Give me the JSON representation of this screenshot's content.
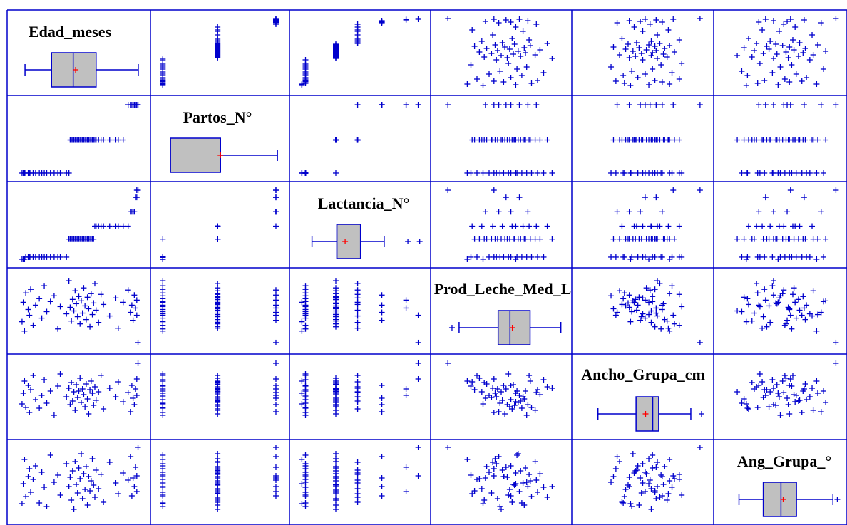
{
  "chart_data": {
    "type": "scatter-matrix",
    "variables": [
      "Edad_meses",
      "Partos_N°",
      "Lactancia_N°",
      "Prod_Leche_Med_L",
      "Ancho_Grupa_cm",
      "Ang_Grupa_°"
    ],
    "diagonal": [
      {
        "name": "Edad_meses",
        "range": [
          0,
          1
        ],
        "min": 0.03,
        "q1": 0.25,
        "median": 0.43,
        "mean": 0.45,
        "q3": 0.62,
        "max": 0.97,
        "outliers": []
      },
      {
        "name": "Partos_N°",
        "range": [
          0,
          1
        ],
        "min": 0.05,
        "q1": 0.05,
        "median": 0.48,
        "mean": 0.48,
        "q3": 0.48,
        "max": 0.97,
        "outliers": []
      },
      {
        "name": "Lactancia_N°",
        "range": [
          0,
          1
        ],
        "min": 0.07,
        "q1": 0.28,
        "median": 0.28,
        "mean": 0.35,
        "q3": 0.48,
        "max": 0.68,
        "outliers": [
          0.88,
          0.98
        ]
      },
      {
        "name": "Prod_Leche_Med_L",
        "range": [
          0,
          1
        ],
        "min": 0.12,
        "q1": 0.45,
        "median": 0.55,
        "mean": 0.57,
        "q3": 0.72,
        "max": 0.98,
        "outliers": [
          0.06
        ]
      },
      {
        "name": "Ancho_Grupa_cm",
        "range": [
          0,
          1
        ],
        "min": 0.1,
        "q1": 0.42,
        "median": 0.56,
        "mean": 0.5,
        "q3": 0.61,
        "max": 0.88,
        "outliers": [
          0.97
        ]
      },
      {
        "name": "Ang_Grupa_°",
        "range": [
          0,
          1
        ],
        "min": 0.1,
        "q1": 0.32,
        "median": 0.48,
        "mean": 0.5,
        "q3": 0.62,
        "max": 0.95,
        "outliers": [
          0.99
        ]
      }
    ],
    "scatter_points": [
      [
        0.04,
        0.02,
        0.02,
        0.35,
        0.4,
        0.2
      ],
      [
        0.05,
        0.02,
        0.02,
        0.62,
        0.55,
        0.48
      ],
      [
        0.06,
        0.02,
        0.02,
        0.22,
        0.72,
        0.82
      ],
      [
        0.07,
        0.02,
        0.05,
        0.75,
        0.35,
        0.3
      ],
      [
        0.09,
        0.02,
        0.05,
        0.52,
        0.66,
        0.58
      ],
      [
        0.1,
        0.02,
        0.05,
        0.44,
        0.28,
        0.69
      ],
      [
        0.11,
        0.02,
        0.05,
        0.8,
        0.6,
        0.36
      ],
      [
        0.13,
        0.02,
        0.05,
        0.3,
        0.8,
        0.54
      ],
      [
        0.15,
        0.02,
        0.05,
        0.58,
        0.46,
        0.73
      ],
      [
        0.18,
        0.02,
        0.05,
        0.67,
        0.34,
        0.21
      ],
      [
        0.2,
        0.02,
        0.05,
        0.4,
        0.52,
        0.64
      ],
      [
        0.22,
        0.02,
        0.05,
        0.85,
        0.74,
        0.43
      ],
      [
        0.24,
        0.02,
        0.05,
        0.49,
        0.41,
        0.16
      ],
      [
        0.27,
        0.02,
        0.05,
        0.63,
        0.58,
        0.88
      ],
      [
        0.3,
        0.02,
        0.05,
        0.71,
        0.24,
        0.5
      ],
      [
        0.33,
        0.02,
        0.05,
        0.25,
        0.65,
        0.6
      ],
      [
        0.35,
        0.02,
        0.05,
        0.56,
        0.82,
        0.32
      ],
      [
        0.4,
        0.02,
        0.05,
        0.46,
        0.5,
        0.76
      ],
      [
        0.42,
        0.02,
        0.3,
        0.92,
        0.62,
        0.44
      ],
      [
        0.43,
        0.48,
        0.3,
        0.55,
        0.39,
        0.57
      ],
      [
        0.44,
        0.48,
        0.3,
        0.36,
        0.7,
        0.25
      ],
      [
        0.45,
        0.48,
        0.3,
        0.66,
        0.44,
        0.66
      ],
      [
        0.46,
        0.48,
        0.3,
        0.5,
        0.57,
        0.12
      ],
      [
        0.47,
        0.48,
        0.3,
        0.78,
        0.31,
        0.79
      ],
      [
        0.48,
        0.48,
        0.3,
        0.6,
        0.67,
        0.47
      ],
      [
        0.49,
        0.48,
        0.3,
        0.42,
        0.49,
        0.35
      ],
      [
        0.5,
        0.48,
        0.3,
        0.7,
        0.58,
        0.7
      ],
      [
        0.51,
        0.48,
        0.3,
        0.32,
        0.76,
        0.55
      ],
      [
        0.52,
        0.48,
        0.3,
        0.64,
        0.42,
        0.9
      ],
      [
        0.53,
        0.48,
        0.3,
        0.47,
        0.61,
        0.27
      ],
      [
        0.54,
        0.48,
        0.3,
        0.82,
        0.53,
        0.62
      ],
      [
        0.55,
        0.48,
        0.3,
        0.57,
        0.36,
        0.4
      ],
      [
        0.56,
        0.48,
        0.3,
        0.38,
        0.68,
        0.72
      ],
      [
        0.57,
        0.48,
        0.3,
        0.69,
        0.47,
        0.18
      ],
      [
        0.58,
        0.48,
        0.3,
        0.53,
        0.26,
        0.58
      ],
      [
        0.59,
        0.48,
        0.3,
        0.28,
        0.6,
        0.38
      ],
      [
        0.6,
        0.48,
        0.3,
        0.74,
        0.72,
        0.52
      ],
      [
        0.61,
        0.48,
        0.3,
        0.45,
        0.55,
        0.83
      ],
      [
        0.62,
        0.48,
        0.3,
        0.61,
        0.38,
        0.46
      ],
      [
        0.63,
        0.48,
        0.48,
        0.88,
        0.64,
        0.29
      ],
      [
        0.64,
        0.48,
        0.48,
        0.51,
        0.45,
        0.67
      ],
      [
        0.66,
        0.48,
        0.48,
        0.34,
        0.57,
        0.41
      ],
      [
        0.68,
        0.48,
        0.48,
        0.73,
        0.8,
        0.61
      ],
      [
        0.7,
        0.48,
        0.48,
        0.59,
        0.33,
        0.22
      ],
      [
        0.75,
        0.48,
        0.48,
        0.43,
        0.62,
        0.78
      ],
      [
        0.8,
        0.48,
        0.48,
        0.68,
        0.5,
        0.49
      ],
      [
        0.82,
        0.48,
        0.48,
        0.26,
        0.71,
        0.34
      ],
      [
        0.86,
        0.48,
        0.48,
        0.62,
        0.43,
        0.63
      ],
      [
        0.9,
        0.97,
        0.48,
        0.79,
        0.56,
        0.53
      ],
      [
        0.92,
        0.97,
        0.68,
        0.48,
        0.29,
        0.86
      ],
      [
        0.93,
        0.97,
        0.68,
        0.58,
        0.66,
        0.31
      ],
      [
        0.94,
        0.97,
        0.68,
        0.37,
        0.48,
        0.56
      ],
      [
        0.95,
        0.97,
        0.68,
        0.72,
        0.39,
        0.44
      ],
      [
        0.96,
        0.97,
        0.88,
        0.54,
        0.61,
        0.71
      ],
      [
        0.97,
        0.97,
        0.88,
        0.65,
        0.52,
        0.37
      ],
      [
        0.97,
        0.97,
        0.98,
        0.44,
        0.75,
        0.59
      ],
      [
        0.98,
        0.97,
        0.98,
        0.06,
        0.97,
        0.99
      ]
    ]
  },
  "colors": {
    "grid_line": "#0000cc",
    "marker": "#0000cc",
    "box_fill": "#c0c0c0",
    "mean_marker": "#ff0000",
    "label": "#000000"
  }
}
